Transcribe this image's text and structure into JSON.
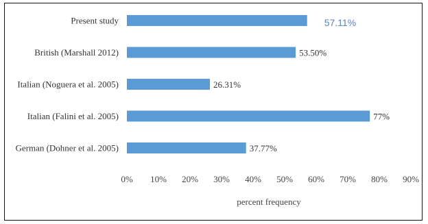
{
  "chart_data": {
    "type": "bar",
    "orientation": "horizontal",
    "categories": [
      "Present study",
      "British (Marshall 2012)",
      "Italian (Noguera et al. 2005)",
      "Italian (Falini et al. 2005)",
      "German (Dohner et al. 2005)"
    ],
    "values": [
      57.11,
      53.5,
      26.31,
      77,
      37.77
    ],
    "value_labels": [
      "57.11%",
      "53.50%",
      "26.31%",
      "77%",
      "37.77%"
    ],
    "xlabel": "percent frequency",
    "xlim": [
      0,
      90
    ],
    "x_ticks": [
      0,
      10,
      20,
      30,
      40,
      50,
      60,
      70,
      80,
      90
    ],
    "x_tick_labels": [
      "0%",
      "10%",
      "20%",
      "30%",
      "40%",
      "50%",
      "60%",
      "70%",
      "80%",
      "90%"
    ],
    "grid": false,
    "bar_color": "#5b9bd5",
    "highlight_label_color": "#5b86b5"
  }
}
